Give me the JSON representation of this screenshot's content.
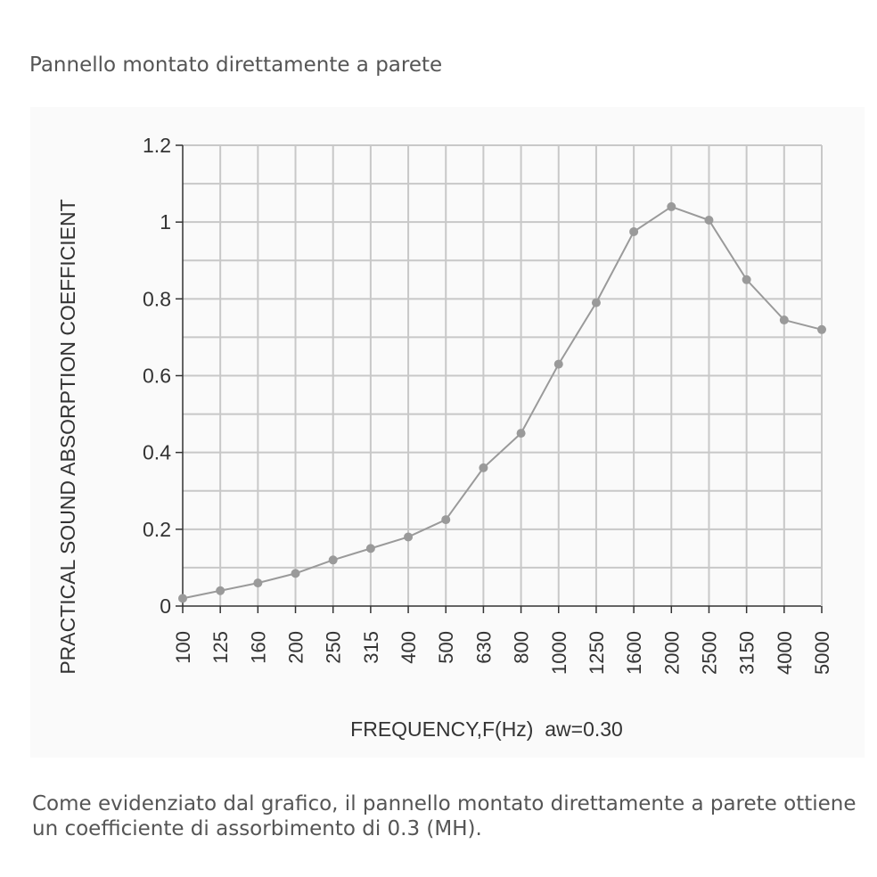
{
  "header": {
    "caption": "Pannello montato direttamente a parete"
  },
  "footer": {
    "caption": "Come evidenziato dal grafico, il pannello montato direttamente a parete ottiene un coefficiente di assorbimento di 0.3 (MH)."
  },
  "colors": {
    "line": "#9a9a9a",
    "grid": "#c8c8c8",
    "axis": "#333333",
    "panel": "#fafafa"
  },
  "chart_data": {
    "type": "line",
    "title": "",
    "xlabel": "FREQUENCY,F(Hz)  aw=0.30",
    "ylabel": "PRACTICAL SOUND ABSORPTION COEFFICIENT",
    "categories": [
      "100",
      "125",
      "160",
      "200",
      "250",
      "315",
      "400",
      "500",
      "630",
      "800",
      "1000",
      "1250",
      "1600",
      "2000",
      "2500",
      "3150",
      "4000",
      "5000"
    ],
    "series": [
      {
        "values": [
          0.02,
          0.04,
          0.06,
          0.085,
          0.12,
          0.15,
          0.18,
          0.225,
          0.36,
          0.45,
          0.63,
          0.79,
          0.975,
          1.04,
          1.005,
          0.85,
          0.745,
          0.72
        ]
      }
    ],
    "ylim": [
      0,
      1.2
    ],
    "yticks": [
      "0",
      "0.2",
      "0.4",
      "0.6",
      "0.8",
      "1",
      "1.2"
    ],
    "grid": true
  }
}
